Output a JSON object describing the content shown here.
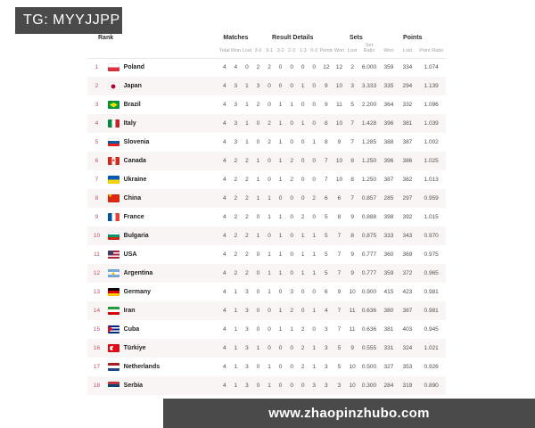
{
  "tag": {
    "text": "TG: MYYJJPP"
  },
  "watermark": {
    "text": "www.zhaopinzhubo.com"
  },
  "colors": {
    "tag_bg": "#4a4a4a",
    "rank": "#c14f63",
    "row_alt": "#faf5f5",
    "group_header": "#2d2d2d",
    "sub_header": "#a3a3a3",
    "cell": "#4f4f4f",
    "team_name": "#1c1c1c",
    "border": "#ebe7e7"
  },
  "table": {
    "groups": [
      {
        "label": "Rank",
        "span": 3,
        "align": "left"
      },
      {
        "label": "Matches",
        "span": 3,
        "align": "center"
      },
      {
        "label": "Result Details",
        "span": 7,
        "align": "center"
      },
      {
        "label": "Sets",
        "span": 3,
        "align": "center"
      },
      {
        "label": "Points",
        "span": 3,
        "align": "center"
      }
    ],
    "subheaders": [
      "Total",
      "Won",
      "Lost",
      "3-0",
      "3-1",
      "3-2",
      "2-3",
      "1-3",
      "0-3",
      "Points",
      "Won",
      "Lost",
      "Set Ratio",
      "Won",
      "Lost",
      "Point Ratio"
    ],
    "rows": [
      {
        "rank": 1,
        "team": "Poland",
        "flag": {
          "dir": "h",
          "stripes": [
            "#ffffff",
            "#dc2f3f"
          ]
        },
        "values": [
          4,
          4,
          0,
          2,
          2,
          0,
          0,
          0,
          0,
          12,
          12,
          2,
          "6.000",
          359,
          334,
          "1.074"
        ]
      },
      {
        "rank": 2,
        "team": "Japan",
        "flag": {
          "dir": "h",
          "stripes": [
            "#ffffff"
          ],
          "overlay": {
            "shape": "circle",
            "color": "#bc002d",
            "size": 5
          }
        },
        "values": [
          4,
          3,
          1,
          3,
          0,
          0,
          0,
          1,
          0,
          9,
          10,
          3,
          "3.333",
          335,
          294,
          "1.139"
        ]
      },
      {
        "rank": 3,
        "team": "Brazil",
        "flag": {
          "dir": "h",
          "stripes": [
            "#009b3a"
          ],
          "overlay": {
            "shape": "diamond",
            "color": "#fedf00"
          }
        },
        "values": [
          4,
          3,
          1,
          2,
          0,
          1,
          1,
          0,
          0,
          9,
          11,
          5,
          "2.200",
          364,
          332,
          "1.096"
        ]
      },
      {
        "rank": 4,
        "team": "Italy",
        "flag": {
          "dir": "v",
          "stripes": [
            "#008c45",
            "#ffffff",
            "#cd212a"
          ]
        },
        "values": [
          4,
          3,
          1,
          0,
          2,
          1,
          0,
          1,
          0,
          8,
          10,
          7,
          "1.428",
          396,
          381,
          "1.039"
        ]
      },
      {
        "rank": 5,
        "team": "Slovenia",
        "flag": {
          "dir": "h",
          "stripes": [
            "#ffffff",
            "#005da4",
            "#ed1c24"
          ]
        },
        "values": [
          4,
          3,
          1,
          0,
          2,
          1,
          0,
          0,
          1,
          8,
          9,
          7,
          "1.285",
          388,
          387,
          "1.002"
        ]
      },
      {
        "rank": 6,
        "team": "Canada",
        "flag": {
          "dir": "v",
          "stripes": [
            "#d52b1e",
            "#ffffff",
            "#d52b1e"
          ],
          "overlay": {
            "shape": "leaf",
            "color": "#d52b1e"
          }
        },
        "values": [
          4,
          2,
          2,
          1,
          0,
          1,
          2,
          0,
          0,
          7,
          10,
          8,
          "1.250",
          396,
          386,
          "1.025"
        ]
      },
      {
        "rank": 7,
        "team": "Ukraine",
        "flag": {
          "dir": "h",
          "stripes": [
            "#005bbb",
            "#ffd500"
          ]
        },
        "values": [
          4,
          2,
          2,
          1,
          0,
          1,
          2,
          0,
          0,
          7,
          10,
          8,
          "1.250",
          387,
          382,
          "1.013"
        ]
      },
      {
        "rank": 8,
        "team": "China",
        "flag": {
          "dir": "h",
          "stripes": [
            "#de2910"
          ],
          "overlay": {
            "shape": "star",
            "color": "#ffde00"
          }
        },
        "values": [
          4,
          2,
          2,
          1,
          1,
          0,
          0,
          0,
          2,
          6,
          6,
          7,
          "0.857",
          285,
          297,
          "0.959"
        ]
      },
      {
        "rank": 9,
        "team": "France",
        "flag": {
          "dir": "v",
          "stripes": [
            "#0055a4",
            "#ffffff",
            "#ef4135"
          ]
        },
        "values": [
          4,
          2,
          2,
          0,
          1,
          1,
          0,
          2,
          0,
          5,
          8,
          9,
          "0.888",
          398,
          392,
          "1.015"
        ]
      },
      {
        "rank": 10,
        "team": "Bulgaria",
        "flag": {
          "dir": "h",
          "stripes": [
            "#ffffff",
            "#00966e",
            "#d62612"
          ]
        },
        "values": [
          4,
          2,
          2,
          1,
          0,
          1,
          0,
          1,
          1,
          5,
          7,
          8,
          "0.875",
          333,
          343,
          "0.970"
        ]
      },
      {
        "rank": 11,
        "team": "USA",
        "flag": {
          "dir": "h",
          "stripes": [
            "#b22234",
            "#ffffff",
            "#b22234",
            "#ffffff",
            "#b22234"
          ],
          "overlay": {
            "shape": "canton",
            "color": "#3c3b6e"
          }
        },
        "values": [
          4,
          2,
          2,
          0,
          1,
          1,
          0,
          1,
          1,
          5,
          7,
          9,
          "0.777",
          360,
          369,
          "0.975"
        ]
      },
      {
        "rank": 12,
        "team": "Argentina",
        "flag": {
          "dir": "h",
          "stripes": [
            "#74acdf",
            "#ffffff",
            "#74acdf"
          ],
          "overlay": {
            "shape": "circle",
            "color": "#f6b40e",
            "size": 3
          }
        },
        "values": [
          4,
          2,
          2,
          0,
          1,
          1,
          0,
          1,
          1,
          5,
          7,
          9,
          "0.777",
          359,
          372,
          "0.965"
        ]
      },
      {
        "rank": 13,
        "team": "Germany",
        "flag": {
          "dir": "h",
          "stripes": [
            "#000000",
            "#dd0000",
            "#ffce00"
          ]
        },
        "values": [
          4,
          1,
          3,
          0,
          1,
          0,
          3,
          0,
          0,
          6,
          9,
          10,
          "0.900",
          415,
          423,
          "0.981"
        ]
      },
      {
        "rank": 14,
        "team": "Iran",
        "flag": {
          "dir": "h",
          "stripes": [
            "#239f40",
            "#ffffff",
            "#da0000"
          ]
        },
        "values": [
          4,
          1,
          3,
          0,
          0,
          1,
          2,
          0,
          1,
          4,
          7,
          11,
          "0.636",
          380,
          387,
          "0.981"
        ]
      },
      {
        "rank": 15,
        "team": "Cuba",
        "flag": {
          "dir": "h",
          "stripes": [
            "#002a8f",
            "#ffffff",
            "#002a8f",
            "#ffffff",
            "#002a8f"
          ],
          "overlay": {
            "shape": "triangle",
            "color": "#cf142b"
          }
        },
        "values": [
          4,
          1,
          3,
          0,
          0,
          1,
          1,
          2,
          0,
          3,
          7,
          11,
          "0.636",
          381,
          403,
          "0.945"
        ]
      },
      {
        "rank": 16,
        "team": "Türkiye",
        "flag": {
          "dir": "h",
          "stripes": [
            "#e30a17"
          ],
          "overlay": {
            "shape": "crescent",
            "color": "#ffffff"
          }
        },
        "values": [
          4,
          1,
          3,
          1,
          0,
          0,
          0,
          2,
          1,
          3,
          5,
          9,
          "0.555",
          331,
          324,
          "1.021"
        ]
      },
      {
        "rank": 17,
        "team": "Netherlands",
        "flag": {
          "dir": "h",
          "stripes": [
            "#ae1c28",
            "#ffffff",
            "#21468b"
          ]
        },
        "values": [
          4,
          1,
          3,
          0,
          1,
          0,
          0,
          2,
          1,
          3,
          5,
          10,
          "0.500",
          327,
          353,
          "0.926"
        ]
      },
      {
        "rank": 18,
        "team": "Serbia",
        "flag": {
          "dir": "h",
          "stripes": [
            "#c6363c",
            "#0c4076",
            "#ffffff"
          ]
        },
        "values": [
          4,
          1,
          3,
          0,
          1,
          0,
          0,
          0,
          3,
          3,
          3,
          10,
          "0.300",
          284,
          319,
          "0.890"
        ]
      }
    ]
  }
}
